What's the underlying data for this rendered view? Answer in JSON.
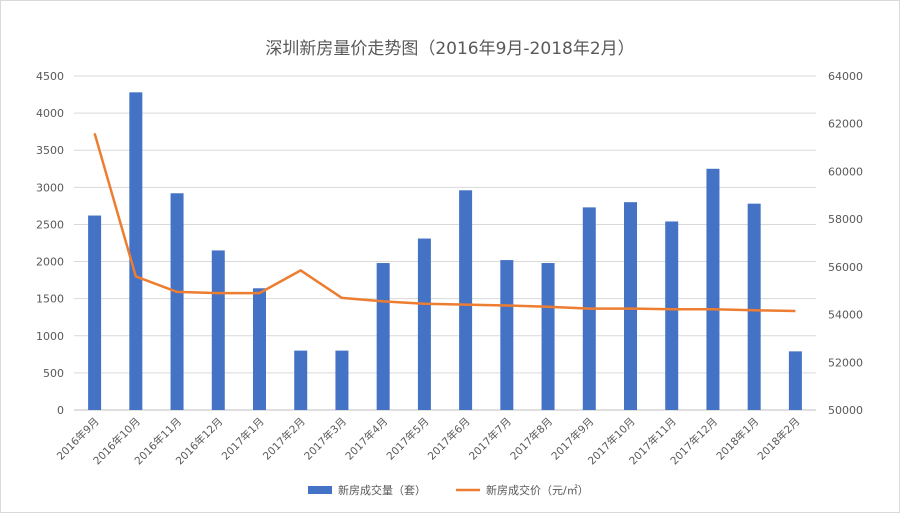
{
  "chart_data": {
    "type": "bar",
    "title": "深圳新房量价走势图（2016年9月-2018年2月）",
    "categories": [
      "2016年9月",
      "2016年10月",
      "2016年11月",
      "2016年12月",
      "2017年1月",
      "2017年2月",
      "2017年3月",
      "2017年4月",
      "2017年5月",
      "2017年6月",
      "2017年7月",
      "2017年8月",
      "2017年9月",
      "2017年10月",
      "2017年11月",
      "2017年12月",
      "2018年1月",
      "2018年2月"
    ],
    "series": [
      {
        "name": "新房成交量（套）",
        "type": "bar",
        "axis": "left",
        "color": "#4472c4",
        "values": [
          2620,
          4280,
          2920,
          2150,
          1640,
          800,
          800,
          1980,
          2310,
          2960,
          2020,
          1980,
          2730,
          2800,
          2540,
          3250,
          2780,
          790
        ]
      },
      {
        "name": "新房成交价（元/㎡）",
        "type": "line",
        "axis": "right",
        "color": "#ed7d31",
        "values": [
          61600,
          55600,
          54950,
          54900,
          54900,
          55850,
          54700,
          54550,
          54450,
          54420,
          54380,
          54330,
          54250,
          54250,
          54220,
          54220,
          54180,
          54150
        ]
      }
    ],
    "y_left": {
      "min": 0,
      "max": 4500,
      "step": 500,
      "ticks": [
        "0",
        "500",
        "1000",
        "1500",
        "2000",
        "2500",
        "3000",
        "3500",
        "4000",
        "4500"
      ]
    },
    "y_right": {
      "min": 50000,
      "max": 64000,
      "step": 2000,
      "ticks": [
        "50000",
        "52000",
        "54000",
        "56000",
        "58000",
        "60000",
        "62000",
        "64000"
      ]
    },
    "grid": true,
    "legend_position": "bottom"
  }
}
